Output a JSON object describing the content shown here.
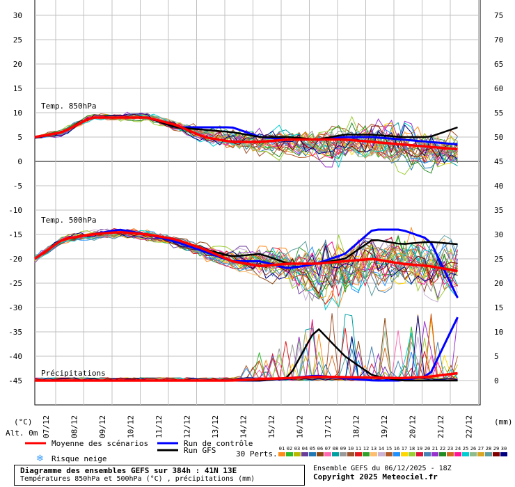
{
  "left_axis": {
    "unit": "(°C)",
    "ticks": [
      "30",
      "25",
      "20",
      "15",
      "10",
      "5",
      "0",
      "-5",
      "-10",
      "-15",
      "-20",
      "-25",
      "-30",
      "-35",
      "-40",
      "-45"
    ]
  },
  "right_axis": {
    "unit": "(mm)",
    "ticks": [
      "75",
      "70",
      "65",
      "60",
      "55",
      "50",
      "45",
      "40",
      "35",
      "30",
      "25",
      "20",
      "15",
      "10",
      "5",
      "0"
    ]
  },
  "x_axis": {
    "alt_label": "Alt. 0m",
    "dates": [
      "07/12",
      "08/12",
      "09/12",
      "10/12",
      "11/12",
      "12/12",
      "13/12",
      "14/12",
      "15/12",
      "16/12",
      "17/12",
      "18/12",
      "19/12",
      "20/12",
      "21/12",
      "22/12"
    ]
  },
  "panels": {
    "t850": "Temp. 850hPa",
    "t500": "Temp. 500hPa",
    "precip": "Précipitations"
  },
  "legend": {
    "mean": "Moyenne des scénarios",
    "control": "Run de contrôle",
    "gfs": "Run GFS",
    "snow": "Risque neige",
    "perts_label": "30 Perts.",
    "pert_numbers": [
      "01",
      "02",
      "03",
      "04",
      "05",
      "06",
      "07",
      "08",
      "09",
      "10",
      "11",
      "12",
      "13",
      "14",
      "15",
      "16",
      "17",
      "18",
      "19",
      "20",
      "21",
      "22",
      "23",
      "24",
      "25",
      "26",
      "27",
      "28",
      "29",
      "30"
    ]
  },
  "footer": {
    "title": "Diagramme des ensembles GEFS sur 384h : 41N 13E",
    "subtitle": "Températures 850hPa et 500hPa (°C) , précipitations (mm)",
    "run": "Ensemble GEFS du 06/12/2025 - 18Z",
    "copyright": "Copyright 2025 Meteociel.fr"
  },
  "colors": {
    "mean": "#ff0000",
    "control": "#0000ff",
    "gfs": "#000000",
    "zero_line": "#808080",
    "grid": "#c0c0c0",
    "perturbations": [
      "#ff8c1a",
      "#2db82d",
      "#b8b800",
      "#6a3d9a",
      "#1f78b4",
      "#8b4513",
      "#ff69b4",
      "#00a0a0",
      "#999999",
      "#a0522d",
      "#e31a1c",
      "#33a02c",
      "#fdbf6f",
      "#cab2d6",
      "#b15928",
      "#1e90ff",
      "#ffd700",
      "#9acd32",
      "#dc143c",
      "#4682b4",
      "#9932cc",
      "#228b22",
      "#d2691e",
      "#ff1493",
      "#00ced1",
      "#8fbc8f",
      "#daa520",
      "#5f9ea0",
      "#800000",
      "#000080"
    ]
  },
  "chart_data": [
    {
      "type": "line",
      "title": "Temp. 850hPa",
      "ylabel": "(°C)",
      "x": [
        "07/12",
        "08/12",
        "09/12",
        "10/12",
        "11/12",
        "12/12",
        "13/12",
        "14/12",
        "15/12",
        "16/12",
        "17/12",
        "18/12",
        "19/12",
        "20/12",
        "21/12",
        "22/12"
      ],
      "series": [
        {
          "name": "Moyenne des scénarios",
          "values": [
            5.0,
            6.0,
            9.0,
            9.0,
            9.0,
            7.5,
            5.0,
            4.0,
            4.0,
            4.5,
            4.5,
            4.5,
            4.0,
            3.5,
            3.0,
            2.5
          ]
        },
        {
          "name": "Run de contrôle",
          "values": [
            5.0,
            6.0,
            9.0,
            9.0,
            9.0,
            7.0,
            7.0,
            7.0,
            5.0,
            4.5,
            4.5,
            5.0,
            5.0,
            4.5,
            4.0,
            3.5
          ]
        },
        {
          "name": "Run GFS",
          "values": [
            5.0,
            6.0,
            9.0,
            9.0,
            9.0,
            7.0,
            6.5,
            6.0,
            5.0,
            5.0,
            4.5,
            5.5,
            5.5,
            5.0,
            5.0,
            7.0
          ]
        }
      ],
      "spread": {
        "min": [
          4.5,
          5.0,
          8.0,
          8.0,
          8.0,
          6.0,
          3.5,
          1.0,
          0.5,
          0.0,
          -1.0,
          -2.0,
          -2.5,
          -3.0,
          -3.0,
          -3.0
        ],
        "max": [
          5.5,
          7.0,
          10.0,
          10.0,
          10.5,
          9.0,
          7.5,
          7.5,
          7.0,
          8.0,
          8.5,
          9.0,
          10.0,
          9.0,
          8.5,
          8.0
        ]
      },
      "ylim": [
        -45,
        30
      ]
    },
    {
      "type": "line",
      "title": "Temp. 500hPa",
      "ylabel": "(°C)",
      "x": [
        "07/12",
        "08/12",
        "09/12",
        "10/12",
        "11/12",
        "12/12",
        "13/12",
        "14/12",
        "15/12",
        "16/12",
        "17/12",
        "18/12",
        "19/12",
        "20/12",
        "21/12",
        "22/12"
      ],
      "series": [
        {
          "name": "Moyenne des scénarios",
          "values": [
            -20.0,
            -16.0,
            -15.0,
            -14.5,
            -15.0,
            -16.0,
            -18.0,
            -20.5,
            -21.5,
            -21.0,
            -21.0,
            -20.5,
            -20.0,
            -21.0,
            -21.5,
            -22.5
          ]
        },
        {
          "name": "Run de contrôle",
          "values": [
            -20.0,
            -16.0,
            -15.0,
            -14.0,
            -15.0,
            -16.5,
            -18.5,
            -20.5,
            -20.5,
            -22.0,
            -21.0,
            -19.0,
            -14.0,
            -14.0,
            -16.0,
            -28.0
          ]
        },
        {
          "name": "Run GFS",
          "values": [
            -20.0,
            -16.0,
            -15.0,
            -14.5,
            -15.0,
            -16.0,
            -18.0,
            -19.5,
            -19.0,
            -21.0,
            -21.0,
            -20.0,
            -16.0,
            -17.0,
            -16.5,
            -17.0
          ]
        }
      ],
      "spread": {
        "min": [
          -21.0,
          -17.0,
          -16.5,
          -16.0,
          -16.5,
          -18.0,
          -20.5,
          -23.0,
          -25.0,
          -26.0,
          -33.0,
          -30.0,
          -29.0,
          -27.0,
          -29.0,
          -30.0
        ],
        "max": [
          -19.0,
          -15.0,
          -14.0,
          -13.5,
          -14.0,
          -15.0,
          -16.5,
          -17.5,
          -17.0,
          -16.5,
          -13.5,
          -13.0,
          -13.5,
          -13.0,
          -14.0,
          -13.0
        ]
      },
      "ylim": [
        -45,
        30
      ]
    },
    {
      "type": "line",
      "title": "Précipitations",
      "ylabel": "(mm)",
      "x": [
        "07/12",
        "08/12",
        "09/12",
        "10/12",
        "11/12",
        "12/12",
        "13/12",
        "14/12",
        "15/12",
        "16/12",
        "17/12",
        "18/12",
        "19/12",
        "20/12",
        "21/12",
        "22/12"
      ],
      "series": [
        {
          "name": "Moyenne des scénarios",
          "values": [
            0,
            0,
            0,
            0,
            0,
            0,
            0,
            0,
            0.3,
            0.5,
            0.8,
            0.7,
            0.6,
            0.5,
            0.8,
            1.5
          ]
        },
        {
          "name": "Run de contrôle",
          "values": [
            0,
            0,
            0,
            0,
            0,
            0,
            0,
            0,
            0,
            0.5,
            1.0,
            0.5,
            0,
            0,
            1.0,
            13.0
          ]
        },
        {
          "name": "Run GFS",
          "values": [
            0,
            0,
            0,
            0,
            0,
            0,
            0,
            0,
            0,
            0.5,
            11.0,
            5.0,
            1.0,
            0,
            0,
            0
          ]
        }
      ],
      "max_member": [
        0,
        0,
        0,
        0,
        0,
        0,
        0,
        0.5,
        6.0,
        9.0,
        14.0,
        14.0,
        14.0,
        14.0,
        14.0,
        14.0
      ],
      "ylim": [
        0,
        75
      ]
    }
  ]
}
